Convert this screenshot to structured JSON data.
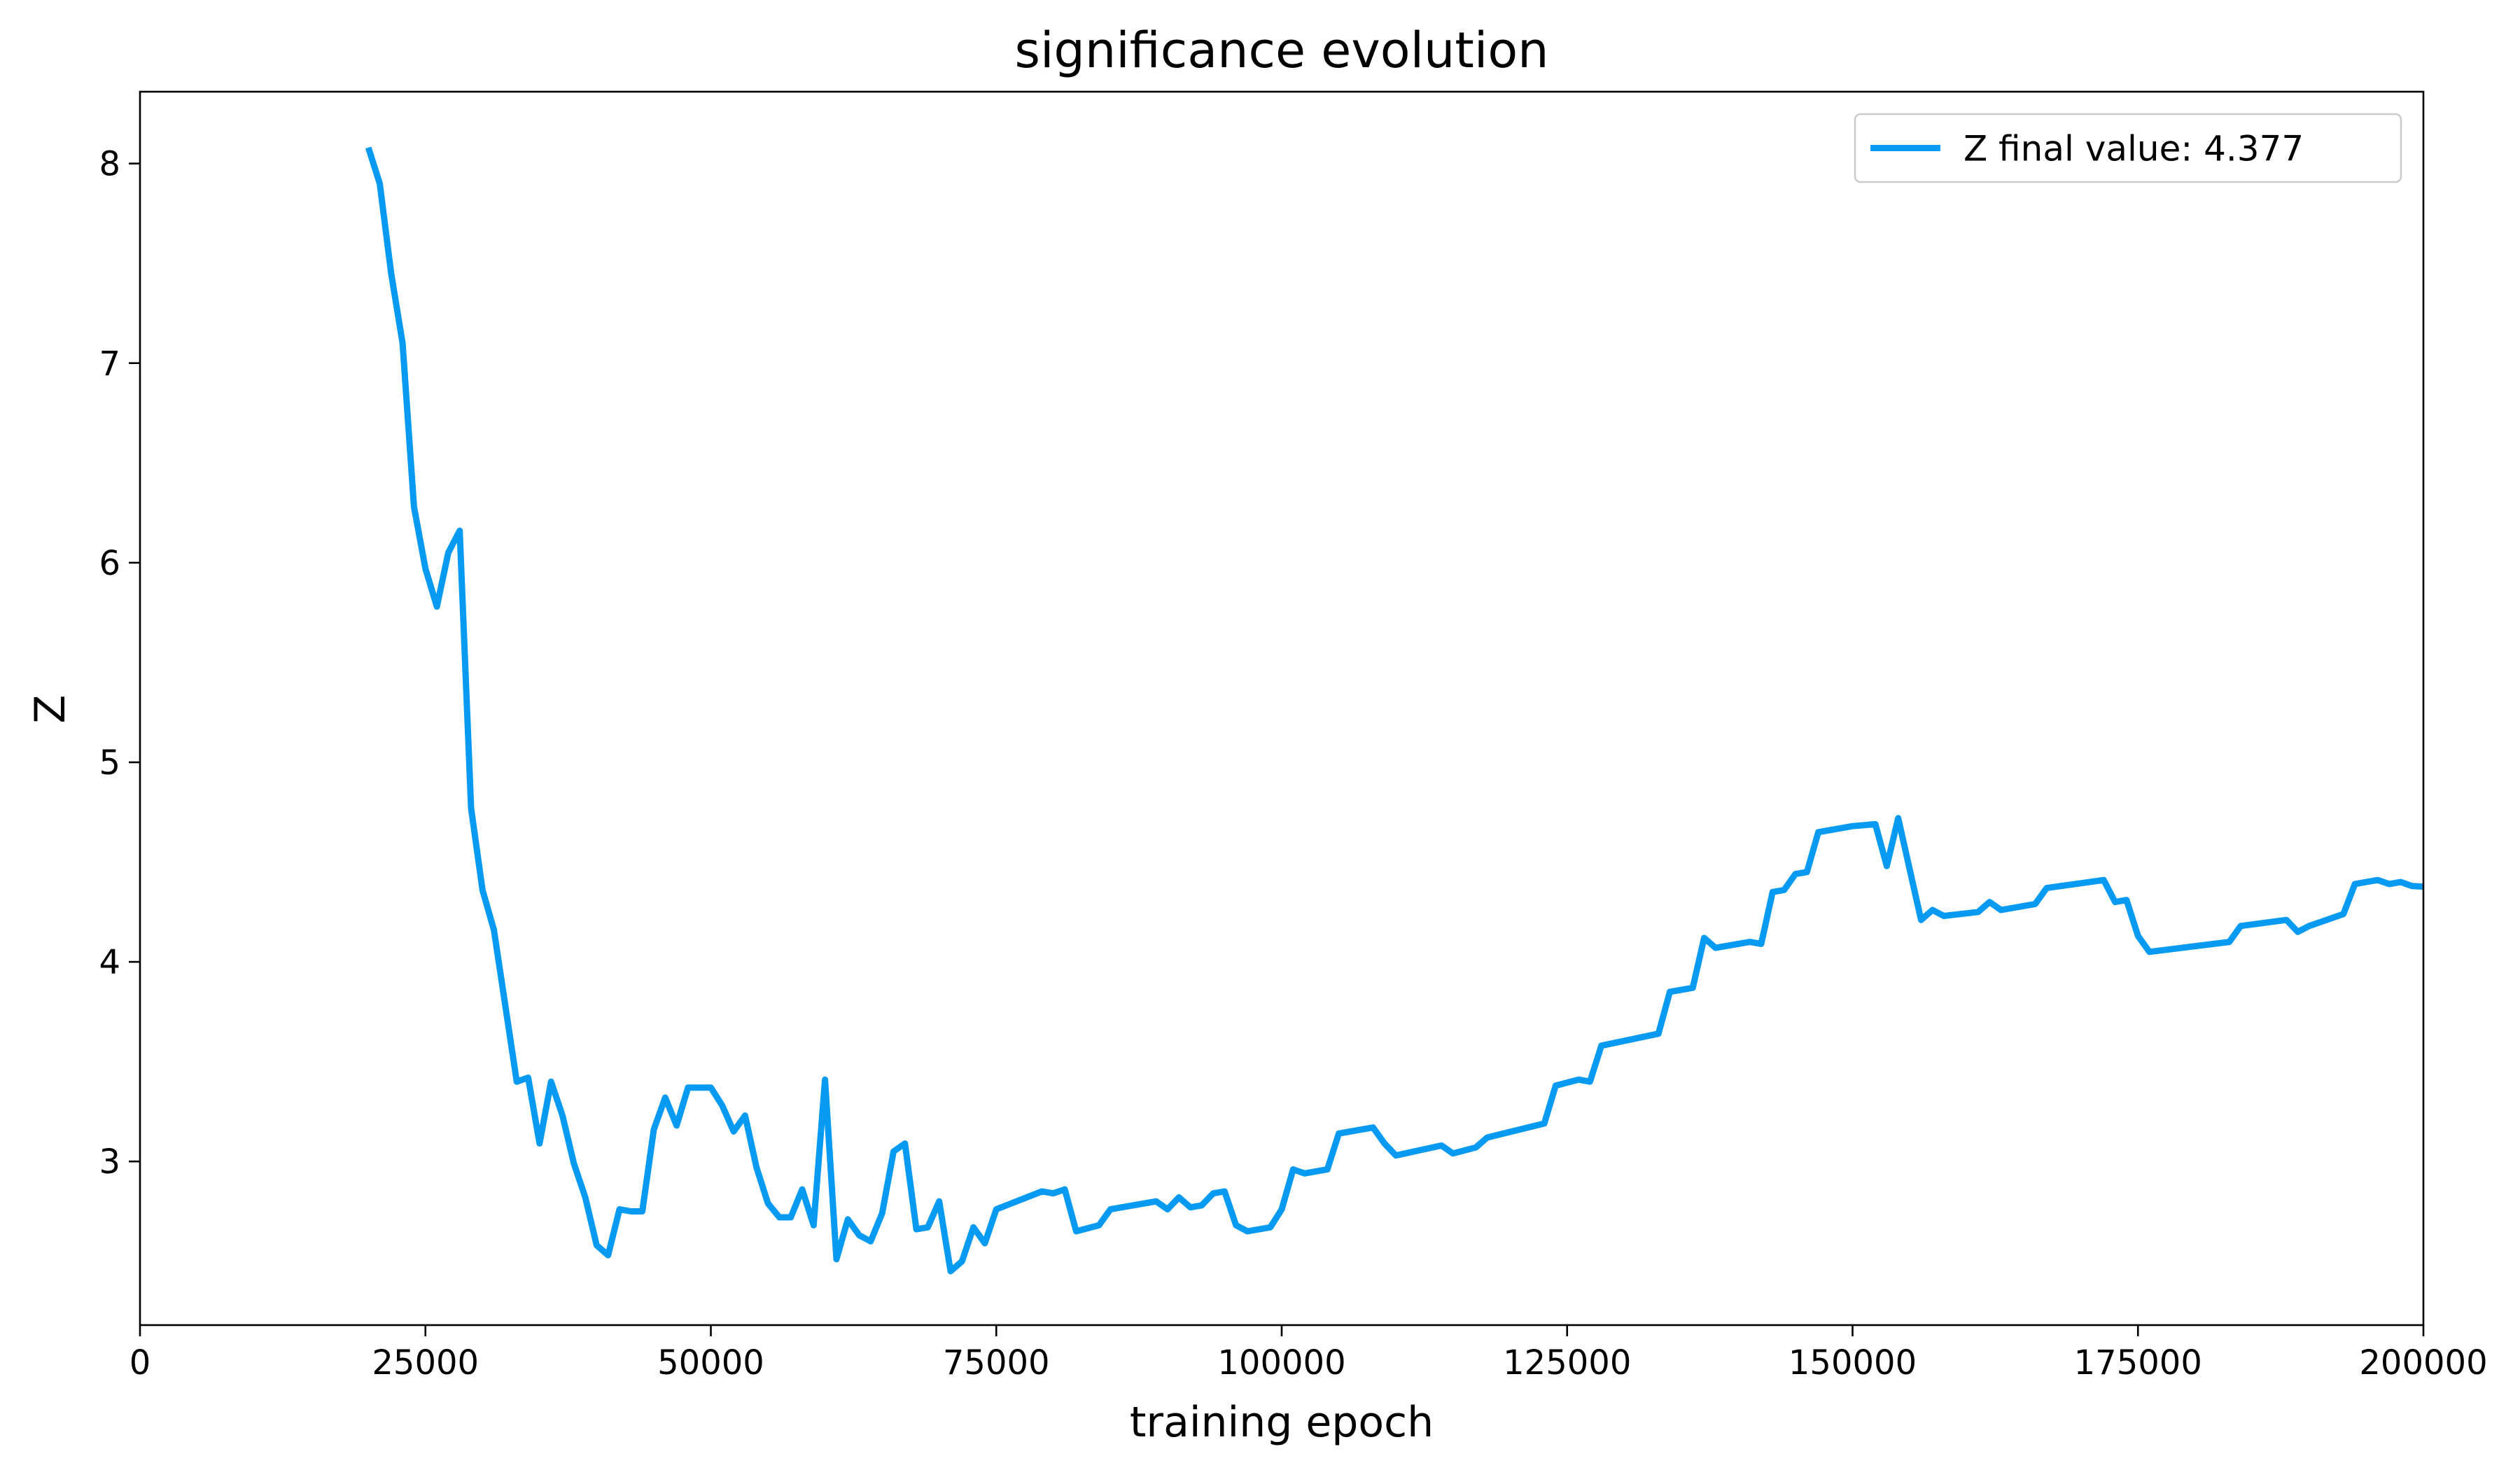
{
  "chart_data": {
    "type": "line",
    "title": "significance evolution",
    "xlabel": "training epoch",
    "ylabel": "Z",
    "xlim": [
      0,
      200000
    ],
    "ylim": [
      2.18,
      8.36
    ],
    "xticks": [
      0,
      25000,
      50000,
      75000,
      100000,
      125000,
      150000,
      175000,
      200000
    ],
    "xtick_labels": [
      "0",
      "25000",
      "50000",
      "75000",
      "100000",
      "125000",
      "150000",
      "175000",
      "200000"
    ],
    "yticks": [
      3,
      4,
      5,
      6,
      7,
      8
    ],
    "ytick_labels": [
      "3",
      "4",
      "5",
      "6",
      "7",
      "8"
    ],
    "grid": false,
    "legend_position": "top-right",
    "series": [
      {
        "name": "Z final value: 4.377",
        "color": "#069af3",
        "x": [
          20000,
          21000,
          22000,
          23000,
          24000,
          25000,
          26000,
          27000,
          28000,
          29000,
          30000,
          31000,
          32000,
          33000,
          34000,
          35000,
          36000,
          37000,
          38000,
          39000,
          40000,
          41000,
          42000,
          43000,
          44000,
          45000,
          46000,
          47000,
          48000,
          49000,
          50000,
          51000,
          52000,
          53000,
          54000,
          55000,
          56000,
          57000,
          58000,
          59000,
          60000,
          61000,
          62000,
          63000,
          64000,
          65000,
          66000,
          67000,
          68000,
          69000,
          70000,
          71000,
          72000,
          73000,
          74000,
          75000,
          79000,
          80000,
          81000,
          82000,
          84000,
          85000,
          89000,
          90000,
          91000,
          92000,
          93000,
          94000,
          95000,
          96000,
          97000,
          99000,
          100000,
          101000,
          102000,
          104000,
          105000,
          108000,
          109000,
          110000,
          114000,
          115000,
          117000,
          118000,
          123000,
          124000,
          126000,
          127000,
          128000,
          133000,
          134000,
          136000,
          137000,
          138000,
          141000,
          142000,
          143000,
          144000,
          145000,
          146000,
          147000,
          150000,
          152000,
          153000,
          154000,
          156000,
          157000,
          158000,
          161000,
          162000,
          163000,
          166000,
          167000,
          172000,
          173000,
          174000,
          175000,
          176000,
          183000,
          184000,
          188000,
          189000,
          190000,
          193000,
          194000,
          195000,
          196000,
          197000,
          198000,
          199000,
          200000
        ],
        "values": [
          8.08,
          7.9,
          7.45,
          7.1,
          6.28,
          5.97,
          5.78,
          6.05,
          6.16,
          4.77,
          4.36,
          4.16,
          3.78,
          3.4,
          3.42,
          3.09,
          3.4,
          3.23,
          2.99,
          2.82,
          2.58,
          2.53,
          2.76,
          2.75,
          2.75,
          3.16,
          3.32,
          3.18,
          3.37,
          3.37,
          3.37,
          3.28,
          3.15,
          3.23,
          2.97,
          2.79,
          2.72,
          2.72,
          2.86,
          2.68,
          3.41,
          2.51,
          2.71,
          2.63,
          2.6,
          2.74,
          3.05,
          3.09,
          2.66,
          2.67,
          2.8,
          2.45,
          2.5,
          2.67,
          2.59,
          2.76,
          2.85,
          2.84,
          2.86,
          2.65,
          2.68,
          2.76,
          2.8,
          2.76,
          2.82,
          2.77,
          2.78,
          2.84,
          2.85,
          2.68,
          2.65,
          2.67,
          2.76,
          2.96,
          2.94,
          2.96,
          3.14,
          3.17,
          3.09,
          3.03,
          3.08,
          3.04,
          3.07,
          3.12,
          3.19,
          3.38,
          3.41,
          3.4,
          3.58,
          3.64,
          3.85,
          3.87,
          4.12,
          4.07,
          4.1,
          4.09,
          4.35,
          4.36,
          4.44,
          4.45,
          4.65,
          4.68,
          4.69,
          4.48,
          4.72,
          4.21,
          4.26,
          4.23,
          4.25,
          4.3,
          4.26,
          4.29,
          4.37,
          4.41,
          4.3,
          4.31,
          4.13,
          4.05,
          4.1,
          4.18,
          4.21,
          4.15,
          4.18,
          4.24,
          4.39,
          4.4,
          4.41,
          4.39,
          4.4,
          4.38,
          4.377
        ]
      }
    ]
  }
}
